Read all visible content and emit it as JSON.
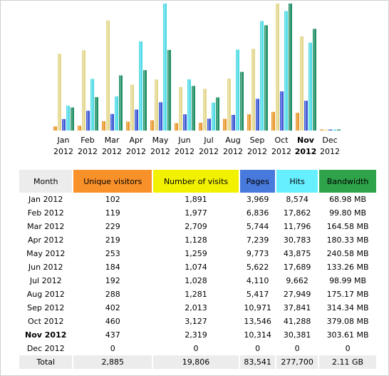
{
  "chart_data": {
    "type": "bar",
    "categories": [
      "Jan",
      "Feb",
      "Mar",
      "Apr",
      "May",
      "Jun",
      "Jul",
      "Aug",
      "Sep",
      "Oct",
      "Nov",
      "Dec"
    ],
    "category_years": [
      "2012",
      "2012",
      "2012",
      "2012",
      "2012",
      "2012",
      "2012",
      "2012",
      "2012",
      "2012",
      "2012",
      "2012"
    ],
    "current_month_index": 10,
    "series": [
      {
        "key": "visitors",
        "color": "#e8972c",
        "values": [
          102,
          119,
          229,
          219,
          253,
          184,
          192,
          288,
          402,
          460,
          437,
          0
        ]
      },
      {
        "key": "visits",
        "color": "#e3d78e",
        "values": [
          1891,
          1977,
          2709,
          1128,
          1259,
          1074,
          1028,
          1281,
          2013,
          3127,
          2319,
          0
        ]
      },
      {
        "key": "pages",
        "color": "#3c57d4",
        "values": [
          3969,
          6836,
          5744,
          7239,
          9773,
          5622,
          4110,
          5417,
          10971,
          13546,
          10314,
          0
        ]
      },
      {
        "key": "hits",
        "color": "#4fdbe6",
        "values": [
          8574,
          17862,
          11796,
          30783,
          43875,
          17689,
          9662,
          27949,
          37841,
          41288,
          30381,
          0
        ]
      },
      {
        "key": "bandwidth",
        "color": "#1f8f64",
        "values": [
          68.98,
          99.8,
          164.58,
          180.33,
          240.58,
          133.26,
          98.99,
          175.17,
          314.34,
          379.08,
          303.61,
          0
        ]
      }
    ],
    "grid": false,
    "legend": "none"
  },
  "table": {
    "headers": {
      "month": "Month",
      "visitors": "Unique visitors",
      "visits": "Number of visits",
      "pages": "Pages",
      "hits": "Hits",
      "bandwidth": "Bandwidth"
    },
    "rows": [
      {
        "month": "Jan 2012",
        "visitors": "102",
        "visits": "1,891",
        "pages": "3,969",
        "hits": "8,574",
        "bandwidth": "68.98 MB"
      },
      {
        "month": "Feb 2012",
        "visitors": "119",
        "visits": "1,977",
        "pages": "6,836",
        "hits": "17,862",
        "bandwidth": "99.80 MB"
      },
      {
        "month": "Mar 2012",
        "visitors": "229",
        "visits": "2,709",
        "pages": "5,744",
        "hits": "11,796",
        "bandwidth": "164.58 MB"
      },
      {
        "month": "Apr 2012",
        "visitors": "219",
        "visits": "1,128",
        "pages": "7,239",
        "hits": "30,783",
        "bandwidth": "180.33 MB"
      },
      {
        "month": "May 2012",
        "visitors": "253",
        "visits": "1,259",
        "pages": "9,773",
        "hits": "43,875",
        "bandwidth": "240.58 MB"
      },
      {
        "month": "Jun 2012",
        "visitors": "184",
        "visits": "1,074",
        "pages": "5,622",
        "hits": "17,689",
        "bandwidth": "133.26 MB"
      },
      {
        "month": "Jul 2012",
        "visitors": "192",
        "visits": "1,028",
        "pages": "4,110",
        "hits": "9,662",
        "bandwidth": "98.99 MB"
      },
      {
        "month": "Aug 2012",
        "visitors": "288",
        "visits": "1,281",
        "pages": "5,417",
        "hits": "27,949",
        "bandwidth": "175.17 MB"
      },
      {
        "month": "Sep 2012",
        "visitors": "402",
        "visits": "2,013",
        "pages": "10,971",
        "hits": "37,841",
        "bandwidth": "314.34 MB"
      },
      {
        "month": "Oct 2012",
        "visitors": "460",
        "visits": "3,127",
        "pages": "13,546",
        "hits": "41,288",
        "bandwidth": "379.08 MB"
      },
      {
        "month": "Nov 2012",
        "visitors": "437",
        "visits": "2,319",
        "pages": "10,314",
        "hits": "30,381",
        "bandwidth": "303.61 MB"
      },
      {
        "month": "Dec 2012",
        "visitors": "0",
        "visits": "0",
        "pages": "0",
        "hits": "0",
        "bandwidth": "0"
      }
    ],
    "total": {
      "month": "Total",
      "visitors": "2,885",
      "visits": "19,806",
      "pages": "83,541",
      "hits": "277,700",
      "bandwidth": "2.11 GB"
    }
  }
}
